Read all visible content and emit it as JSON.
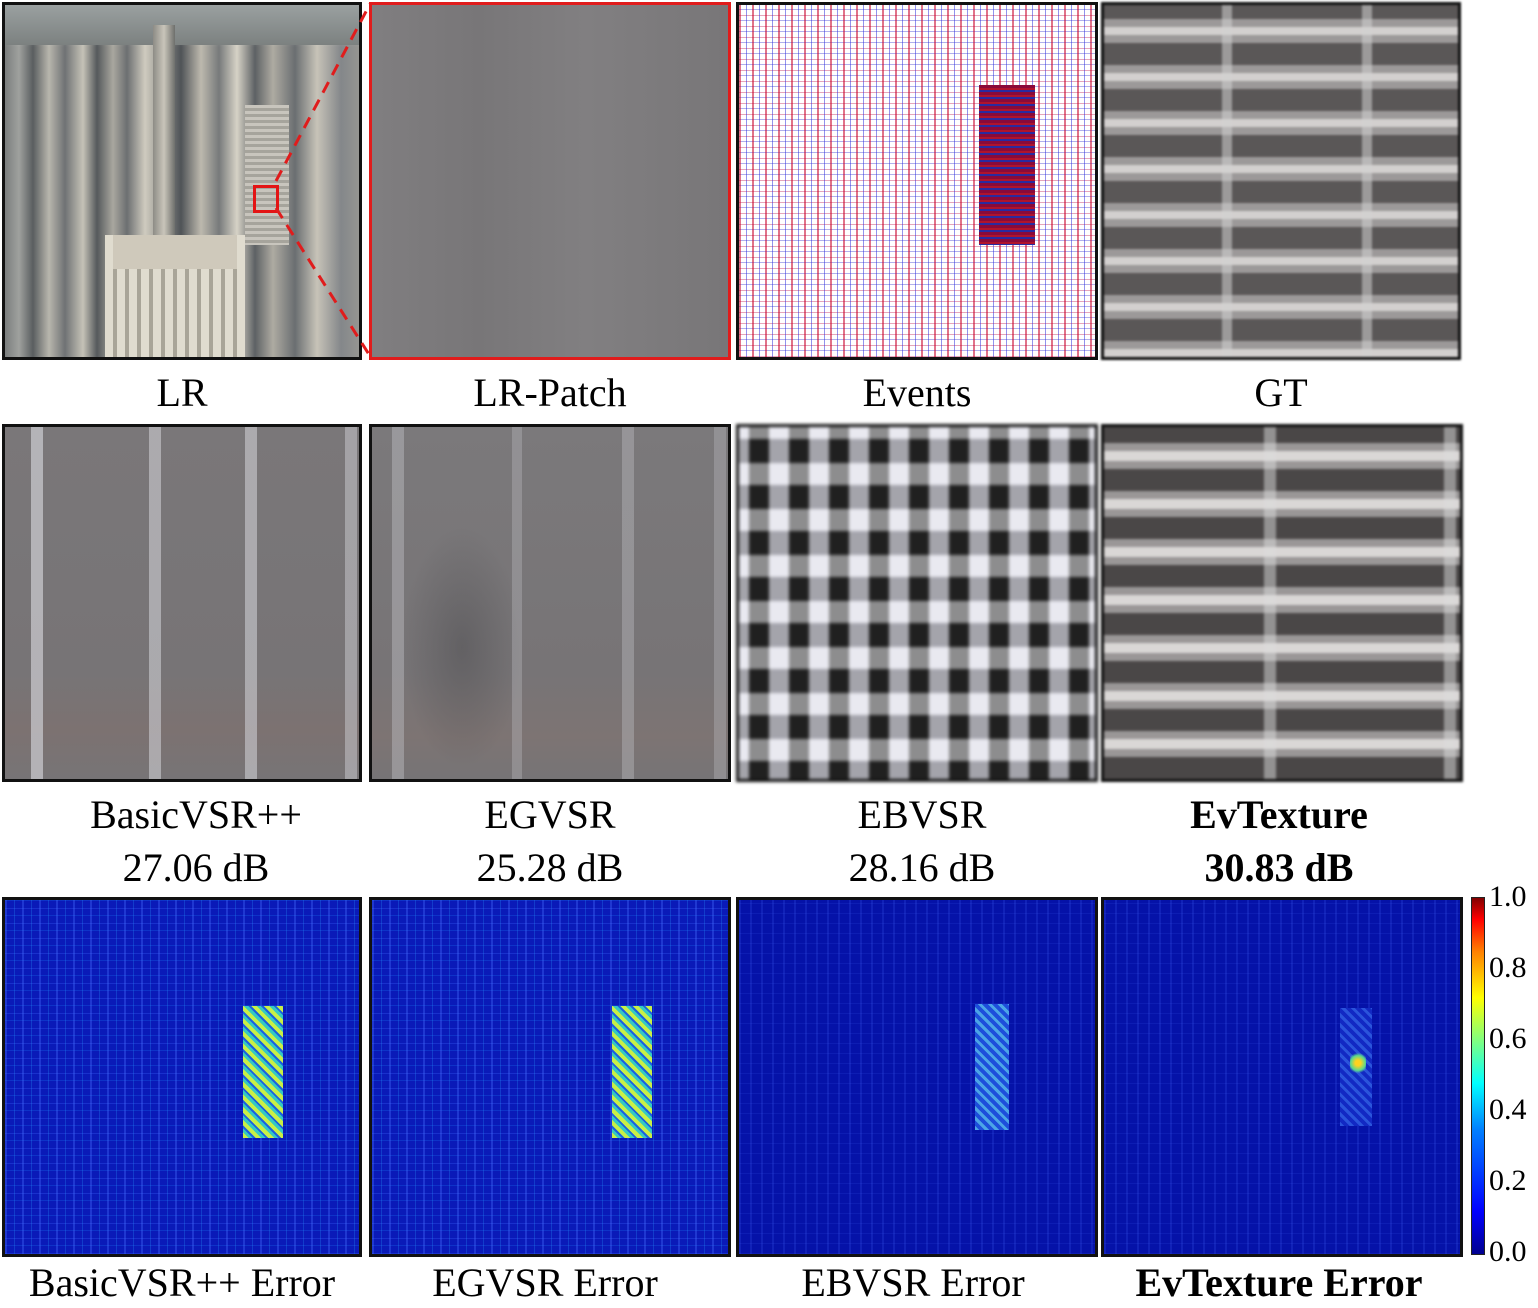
{
  "row1": {
    "labels": [
      "LR",
      "LR-Patch",
      "Events",
      "GT"
    ]
  },
  "row2": {
    "methods": [
      {
        "name": "BasicVSR++",
        "psnr": "27.06 dB"
      },
      {
        "name": "EGVSR",
        "psnr": "25.28 dB"
      },
      {
        "name": "EBVSR",
        "psnr": "28.16 dB"
      },
      {
        "name": "EvTexture",
        "psnr": "30.83 dB"
      }
    ]
  },
  "row3": {
    "labels": [
      "BasicVSR++ Error",
      "EGVSR Error",
      "EBVSR Error",
      "EvTexture Error"
    ]
  },
  "colorbar": {
    "ticks": [
      "1.0",
      "0.8",
      "0.6",
      "0.4",
      "0.2",
      "0.0"
    ],
    "colormap": "jet"
  },
  "colors": {
    "highlight_box": "#e31414",
    "border": "#111111"
  }
}
